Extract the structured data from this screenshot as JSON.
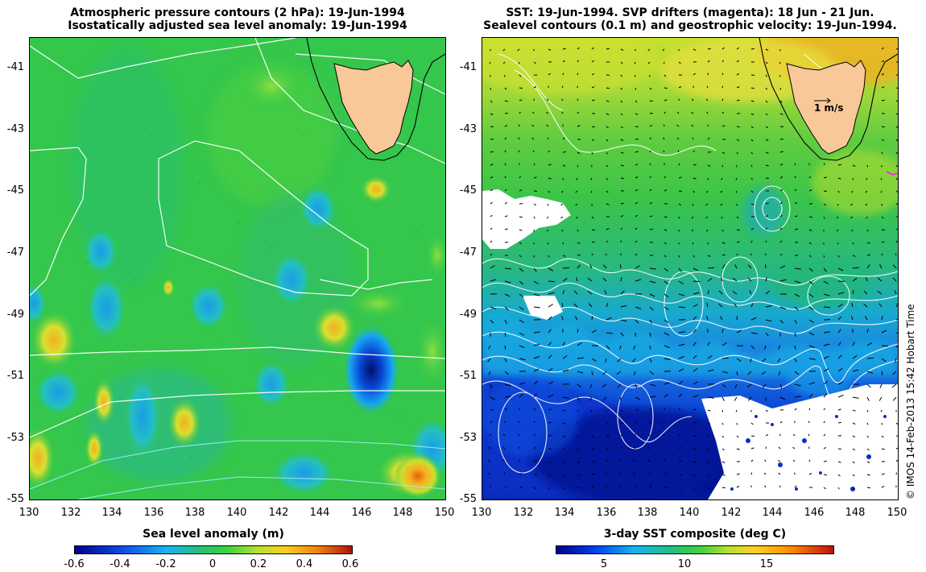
{
  "left_map": {
    "title_line1": "Atmospheric pressure contours (2 hPa): 19-Jun-1994",
    "title_line2": "Isostatically adjusted sea level anomaly: 19-Jun-1994",
    "colorbar_title": "Sea level anomaly (m)",
    "colorbar_ticks": [
      "-0.6",
      "-0.4",
      "-0.2",
      "0",
      "0.2",
      "0.4",
      "0.6"
    ]
  },
  "right_map": {
    "title_line1": "SST: 19-Jun-1994. SVP drifters (magenta): 18 Jun - 21 Jun.",
    "title_line2": "Sealevel contours (0.1 m) and geostrophic velocity: 19-Jun-1994.",
    "colorbar_title": "3-day SST composite (deg C)",
    "colorbar_ticks": [
      "5",
      "10",
      "15"
    ],
    "scale_label": "1 m/s"
  },
  "y_ticks": [
    "-41",
    "-43",
    "-45",
    "-47",
    "-49",
    "-51",
    "-53",
    "-55"
  ],
  "x_ticks": [
    "130",
    "132",
    "134",
    "136",
    "138",
    "140",
    "142",
    "144",
    "146",
    "148",
    "150"
  ],
  "credit": "© IMOS 14-Feb-2013 15:42 Hobart Time",
  "colors": {
    "land": "#f8c898",
    "sla_scale": [
      "#00008b",
      "#1e64ff",
      "#17b8f0",
      "#24c46a",
      "#3ad33a",
      "#c8e23a",
      "#ffc020",
      "#f07010",
      "#b01010"
    ],
    "sst_scale": [
      "#00008b",
      "#0050ff",
      "#18b4f0",
      "#22c080",
      "#40d040",
      "#c0e030",
      "#ffd020",
      "#ff9000",
      "#c01010"
    ],
    "drifter": "#ff00ff"
  }
}
